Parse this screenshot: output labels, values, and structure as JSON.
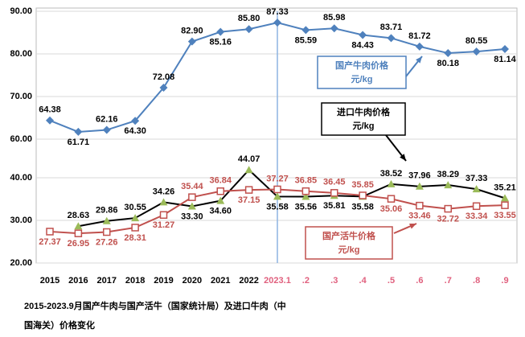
{
  "chart_data": {
    "type": "line",
    "title": "2015-2023.9月国产牛肉与国产活牛（国家统计局）及进口牛肉（中国海关）价格变化",
    "categories": [
      "2015",
      "2016",
      "2017",
      "2018",
      "2019",
      "2020",
      "2021",
      "2022",
      "2023.1",
      ".2",
      ".3",
      ".4",
      ".5",
      ".6",
      ".7",
      ".8",
      ".9"
    ],
    "ylim": [
      20,
      90
    ],
    "ybreak": [
      40,
      60
    ],
    "grid": true,
    "yticks": [
      {
        "value": 20,
        "label": "20.00"
      },
      {
        "value": 30,
        "label": "30.00"
      },
      {
        "value": 40,
        "label": "40.00"
      },
      {
        "value": 60,
        "label": "60.00"
      },
      {
        "value": 70,
        "label": "70.00"
      },
      {
        "value": 80,
        "label": "80.00"
      },
      {
        "value": 90,
        "label": "90.00"
      }
    ],
    "series": [
      {
        "name": "国产牛肉价格",
        "unit": "元/kg",
        "color": "#4f81bd",
        "marker": "diamond",
        "values": [
          64.38,
          61.71,
          62.16,
          64.3,
          72.08,
          82.9,
          85.16,
          85.8,
          87.33,
          85.59,
          85.98,
          84.43,
          83.71,
          81.72,
          80.18,
          80.55,
          81.14
        ],
        "value_labels": [
          "64.38",
          "61.71",
          "62.16",
          "64.30",
          "72.08",
          "82.90",
          "85.16",
          "85.80",
          "87.33",
          "85.59",
          "85.98",
          "84.43",
          "83.71",
          "81.72",
          "80.18",
          "80.55",
          "81.14"
        ]
      },
      {
        "name": "进口牛肉价格",
        "unit": "元/kg",
        "color": "#000000",
        "marker": "triangle",
        "values": [
          null,
          28.63,
          29.86,
          30.55,
          34.26,
          33.3,
          34.6,
          44.07,
          35.58,
          35.56,
          35.81,
          35.58,
          38.52,
          37.96,
          38.29,
          37.33,
          35.21
        ],
        "value_labels": [
          null,
          "28.63",
          "29.86",
          "30.55",
          "34.26",
          "33.30",
          "34.60",
          "44.07",
          "35.58",
          "35.56",
          "35.81",
          "35.58",
          "38.52",
          "37.96",
          "38.29",
          "37.33",
          "35.21"
        ]
      },
      {
        "name": "国产活牛价格",
        "unit": "元/kg",
        "color": "#c0504d",
        "marker": "square",
        "values": [
          27.37,
          26.95,
          27.26,
          28.31,
          31.27,
          35.44,
          36.84,
          37.15,
          37.27,
          36.85,
          36.45,
          35.85,
          35.06,
          33.46,
          32.72,
          33.34,
          33.55
        ],
        "value_labels": [
          "27.37",
          "26.95",
          "27.26",
          "28.31",
          "31.27",
          "35.44",
          "36.84",
          "37.15",
          "37.27",
          "36.85",
          "36.45",
          "35.85",
          "35.06",
          "33.46",
          "32.72",
          "33.34",
          "33.55"
        ]
      }
    ]
  }
}
